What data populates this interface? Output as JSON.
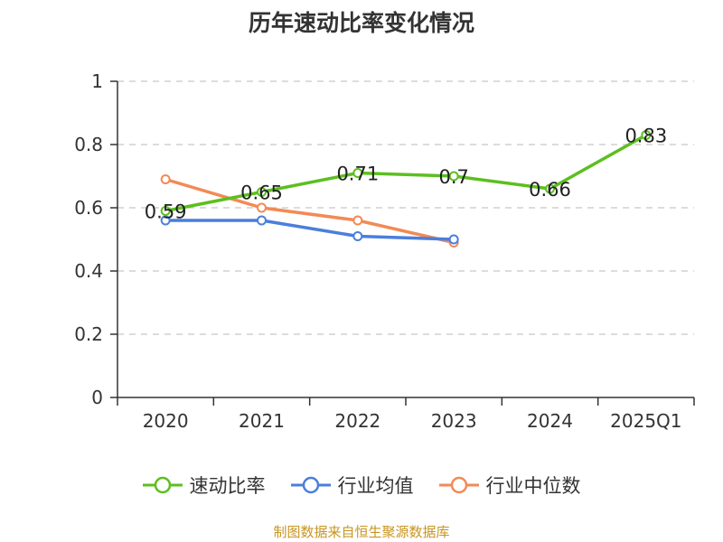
{
  "title": "历年速动比率变化情况",
  "source_note": "制图数据来自恒生聚源数据库",
  "legend": [
    {
      "label": "速动比率",
      "color": "#5cbf1f"
    },
    {
      "label": "行业均值",
      "color": "#4a7fdc"
    },
    {
      "label": "行业中位数",
      "color": "#f28a55"
    }
  ],
  "chart_data": {
    "type": "line",
    "title": "历年速动比率变化情况",
    "xlabel": "",
    "ylabel": "",
    "categories": [
      "2020",
      "2021",
      "2022",
      "2023",
      "2024",
      "2025Q1"
    ],
    "y_ticks": [
      "0",
      "0.2",
      "0.4",
      "0.6",
      "0.8",
      "1"
    ],
    "ylim": [
      0,
      1
    ],
    "grid": "horizontal dashed",
    "legend_position": "bottom",
    "series": [
      {
        "name": "速动比率",
        "color": "#5cbf1f",
        "values": [
          0.59,
          0.65,
          0.71,
          0.7,
          0.66,
          0.83
        ],
        "data_labels": [
          "0.59",
          "0.65",
          "0.71",
          "0.7",
          "0.66",
          "0.83"
        ]
      },
      {
        "name": "行业均值",
        "color": "#4a7fdc",
        "values": [
          0.56,
          0.56,
          0.51,
          0.5,
          null,
          null
        ]
      },
      {
        "name": "行业中位数",
        "color": "#f28a55",
        "values": [
          0.69,
          0.6,
          0.56,
          0.49,
          null,
          null
        ]
      }
    ]
  }
}
